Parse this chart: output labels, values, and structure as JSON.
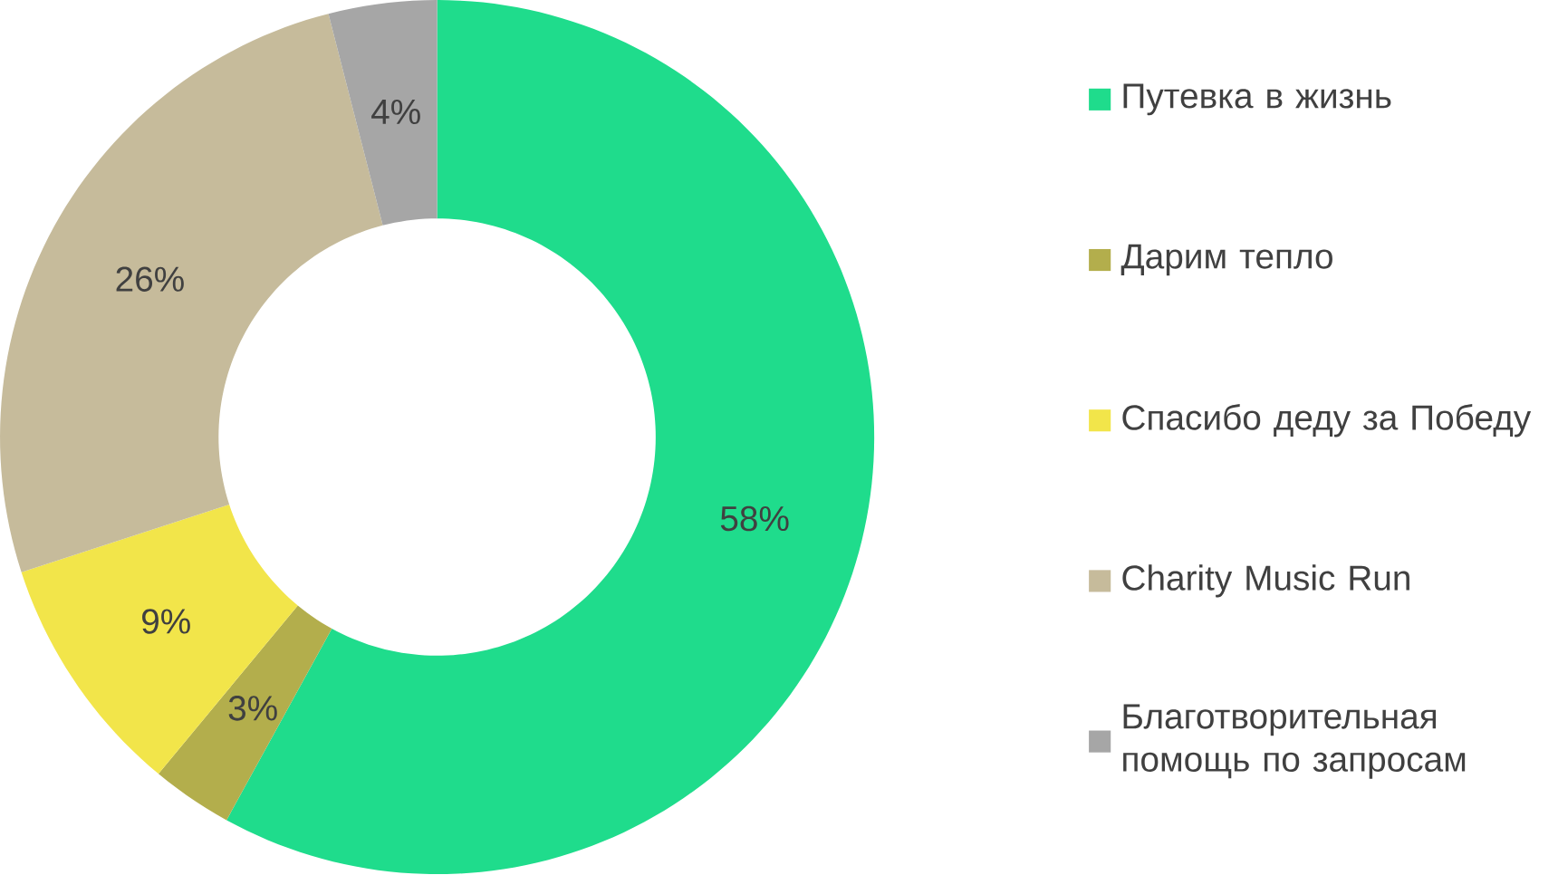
{
  "chart_data": {
    "type": "donut",
    "categories": [
      "Путевка в жизнь",
      "Дарим тепло",
      "Спасибо деду за Победу",
      "Charity Music Run",
      "Благотворительная помощь по запросам"
    ],
    "values": [
      58,
      3,
      9,
      26,
      4
    ],
    "value_labels": [
      "58%",
      "3%",
      "9%",
      "26%",
      "4%"
    ],
    "colors": [
      "#1fdc8c",
      "#b3ae4c",
      "#f2e54a",
      "#c6bb9b",
      "#a6a6a6"
    ],
    "legend": "right"
  }
}
